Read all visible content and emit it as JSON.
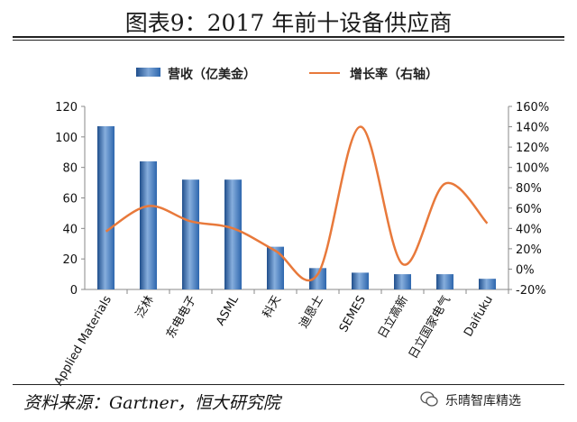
{
  "title": "图表9：2017 年前十设备供应商",
  "source": "资料来源：Gartner，恒大研究院",
  "watermark": "乐晴智库精选",
  "colors": {
    "bar": "#3a73b8",
    "line": "#e8793b"
  },
  "chart_data": {
    "type": "bar+line",
    "categories": [
      "Applied Materials",
      "泛林",
      "东电电子",
      "ASML",
      "科天",
      "迪恩士",
      "SEMES",
      "日立高新",
      "日立国家电气",
      "Daifuku"
    ],
    "series": [
      {
        "name": "营收（亿美金）",
        "type": "bar",
        "axis": "left",
        "values": [
          107,
          84,
          72,
          72,
          28,
          14,
          11,
          10,
          10,
          7
        ]
      },
      {
        "name": "增长率（右轴）",
        "type": "line",
        "axis": "right",
        "unit": "%",
        "values": [
          37,
          62,
          47,
          40,
          18,
          -5,
          140,
          5,
          84,
          45
        ]
      }
    ],
    "y_left": {
      "min": 0,
      "max": 120,
      "ticks": [
        "0",
        "20",
        "40",
        "60",
        "80",
        "100",
        "120"
      ]
    },
    "y_right": {
      "min": -20,
      "max": 160,
      "ticks": [
        "-20%",
        "0%",
        "20%",
        "40%",
        "60%",
        "80%",
        "100%",
        "120%",
        "140%",
        "160%"
      ]
    },
    "legend_position": "top",
    "grid": false
  }
}
